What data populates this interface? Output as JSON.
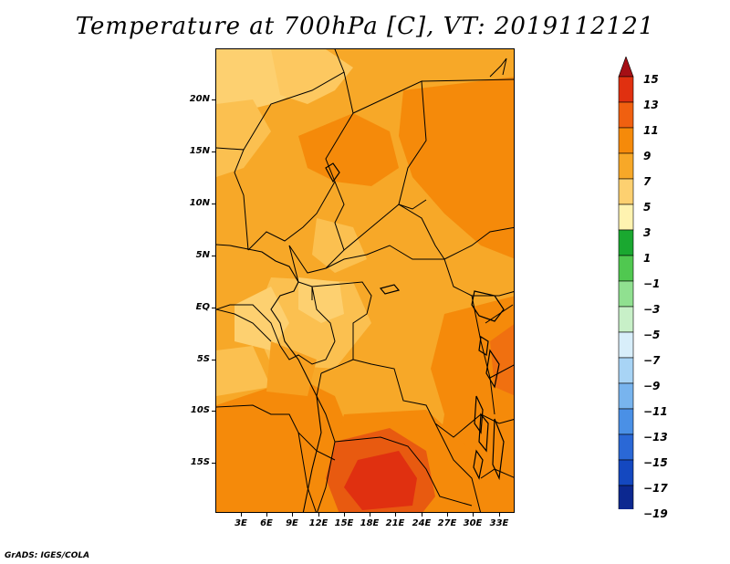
{
  "title": "Temperature at 700hPa [C], VT: 2019112121",
  "credit": "GrADS: IGES/COLA",
  "map": {
    "latitude_labels": [
      "20N",
      "15N",
      "10N",
      "5N",
      "EQ",
      "5S",
      "10S",
      "15S"
    ],
    "longitude_labels": [
      "3E",
      "6E",
      "9E",
      "12E",
      "15E",
      "18E",
      "21E",
      "24E",
      "27E",
      "30E",
      "33E"
    ]
  },
  "colorbar": {
    "labels": [
      "15",
      "13",
      "11",
      "9",
      "7",
      "5",
      "3",
      "1",
      "−1",
      "−3",
      "−5",
      "−7",
      "−9",
      "−11",
      "−13",
      "−15",
      "−17",
      "−19"
    ],
    "colors": [
      "#a50f15",
      "#e03010",
      "#f06010",
      "#f58a0a",
      "#f7a828",
      "#fdd070",
      "#fff3b0",
      "#1aa830",
      "#50c850",
      "#90e090",
      "#c8f0c8",
      "#d8eefa",
      "#a8d4f5",
      "#78b4ee",
      "#4a90e6",
      "#2a68d6",
      "#1448c0",
      "#0c2890",
      "#080860",
      "#e8e0f8"
    ]
  }
}
